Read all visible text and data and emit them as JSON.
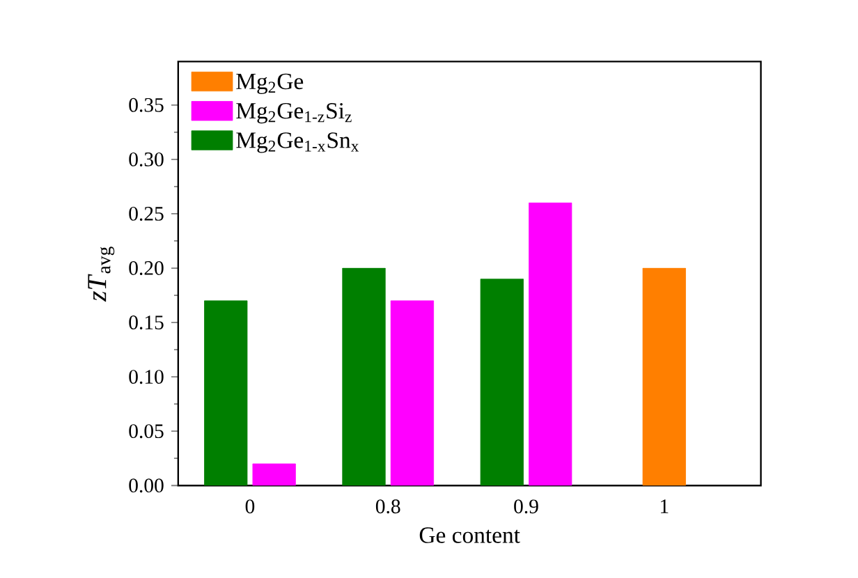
{
  "chart_data": {
    "type": "bar",
    "xlabel": "Ge content",
    "ylabel": "*zT*$_{avg}$",
    "categories": [
      "0",
      "0.8",
      "0.9",
      "1"
    ],
    "series": [
      {
        "name": "Mg$_{2}$Ge",
        "color": "#ff7f00",
        "values": [
          null,
          null,
          null,
          0.2
        ]
      },
      {
        "name": "Mg$_{2}$Ge$_{1-z}$Si$_{z}$",
        "color": "#ff00ff",
        "values": [
          0.02,
          0.17,
          0.26,
          null
        ]
      },
      {
        "name": "Mg$_{2}$Ge$_{1-x}$Sn$_{x}$",
        "color": "#007f00",
        "values": [
          0.17,
          0.2,
          0.19,
          null
        ]
      }
    ],
    "ylim": [
      0,
      0.39
    ],
    "yticks": [
      {
        "value": 0,
        "label": "0.00"
      },
      {
        "value": 0.05,
        "label": "0.05"
      },
      {
        "value": 0.1,
        "label": "0.10"
      },
      {
        "value": 0.15,
        "label": "0.15"
      },
      {
        "value": 0.2,
        "label": "0.20"
      },
      {
        "value": 0.25,
        "label": "0.25"
      },
      {
        "value": 0.3,
        "label": "0.30"
      },
      {
        "value": 0.35,
        "label": "0.35"
      }
    ],
    "legend": "top left",
    "grid": false
  }
}
